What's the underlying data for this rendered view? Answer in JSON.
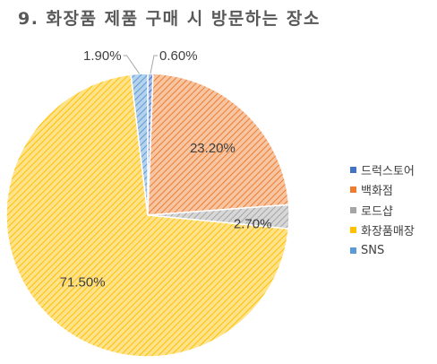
{
  "chart_data": {
    "type": "pie",
    "title": "9. 화장품 제품 구매 시 방문하는 장소",
    "categories": [
      "드럭스토어",
      "백화점",
      "로드샵",
      "화장품매장",
      "SNS"
    ],
    "values": [
      0.6,
      23.2,
      2.7,
      71.5,
      1.9
    ],
    "labels": [
      "0.60%",
      "23.20%",
      "2.70%",
      "71.50%",
      "1.90%"
    ],
    "colors": [
      "#4472C4",
      "#ED7D31",
      "#A5A5A5",
      "#FFC000",
      "#5B9BD5"
    ],
    "fill_pattern": "diagonal-hatch",
    "start_angle_deg": 0,
    "direction": "clockwise",
    "legend_position": "right"
  }
}
